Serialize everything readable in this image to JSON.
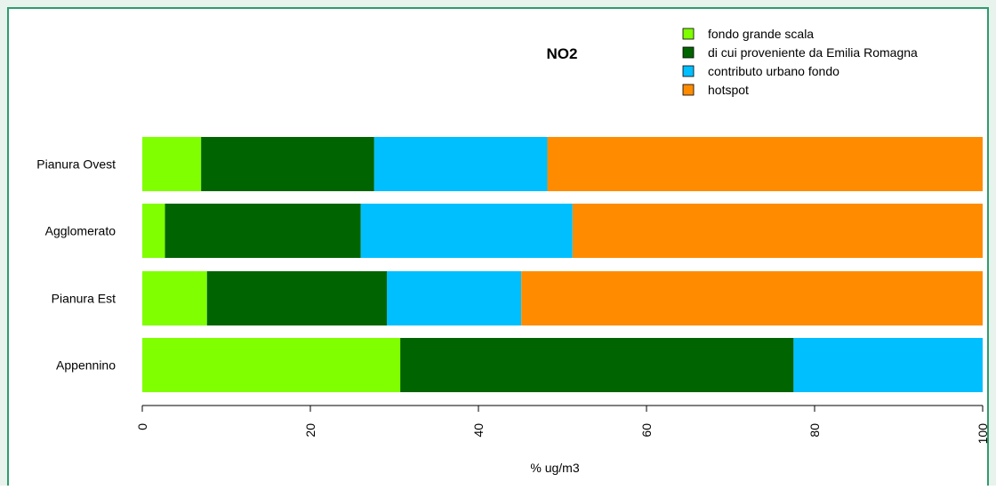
{
  "chart_data": {
    "type": "bar",
    "orientation": "horizontal",
    "stacked": true,
    "title": "NO2",
    "xlabel": "% ug/m3",
    "ylabel": "",
    "xlim": [
      0,
      100
    ],
    "x_ticks": [
      "0",
      "20",
      "40",
      "60",
      "80",
      "100"
    ],
    "categories": [
      "Pianura Ovest",
      "Agglomerato",
      "Pianura Est",
      "Appennino"
    ],
    "series": [
      {
        "name": "fondo grande scala",
        "color": "#7fff00",
        "values": [
          7.0,
          2.7,
          7.7,
          30.7
        ]
      },
      {
        "name": "di cui proveniente da Emilia Romagna",
        "color": "#006400",
        "values": [
          20.6,
          23.3,
          21.4,
          46.8
        ]
      },
      {
        "name": "contributo urbano fondo",
        "color": "#00bfff",
        "values": [
          20.6,
          25.2,
          16.0,
          22.5
        ]
      },
      {
        "name": "hotspot",
        "color": "#ff8c00",
        "values": [
          51.8,
          48.8,
          54.9,
          0
        ]
      }
    ],
    "legend_position": "top-right",
    "grid": false
  }
}
